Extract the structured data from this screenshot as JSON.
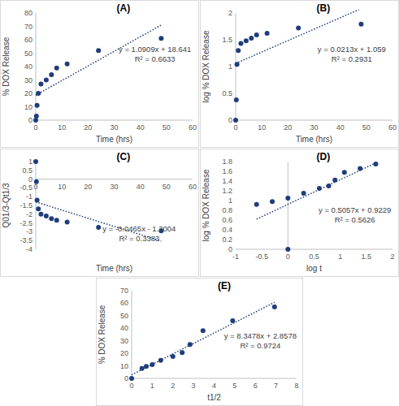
{
  "chart_data": [
    {
      "type": "scatter",
      "title": "(A)",
      "x_label": "Time (hrs)",
      "y_label": "% DOX Release",
      "x": [
        0,
        0.25,
        0.5,
        1,
        2,
        4,
        6,
        8,
        12,
        24,
        48
      ],
      "values": [
        0,
        3,
        11,
        20,
        27,
        30,
        34,
        39,
        42,
        52,
        61
      ],
      "xlim": [
        0,
        60
      ],
      "xticks": [
        0,
        10,
        20,
        30,
        40,
        50,
        60
      ],
      "ylim": [
        0,
        80
      ],
      "yticks": [
        0,
        10,
        20,
        30,
        40,
        50,
        60,
        70,
        80
      ],
      "trendline": {
        "slope": 1.0909,
        "intercept": 18.641
      },
      "annotations": [
        "y = 1.0909x + 18.641",
        "R² = 0.6633"
      ],
      "color": "#1f3d7a",
      "marker": "circle",
      "grid": false
    },
    {
      "type": "scatter",
      "title": "(B)",
      "x_label": "Time (hrs)",
      "y_label": "log % DOX Release",
      "x": [
        0,
        0.25,
        0.5,
        1,
        2,
        4,
        6,
        8,
        12,
        24,
        48
      ],
      "values": [
        0,
        0.38,
        1.04,
        1.3,
        1.43,
        1.48,
        1.53,
        1.59,
        1.62,
        1.72,
        1.79
      ],
      "xlim": [
        0,
        60
      ],
      "xticks": [
        0,
        10,
        20,
        30,
        40,
        50,
        60
      ],
      "ylim": [
        0,
        2
      ],
      "yticks": [
        0,
        0.5,
        1,
        1.5,
        2
      ],
      "trendline": {
        "slope": 0.0213,
        "intercept": 1.059
      },
      "annotations": [
        "y = 0.0213x + 1.059",
        "R² = 0.2931"
      ],
      "color": "#1f3d7a",
      "marker": "circle",
      "grid": false
    },
    {
      "type": "scatter",
      "title": "(C)",
      "x_label": "Time (hrs)",
      "y_label": "Q01/3-Qt1/3",
      "x": [
        0,
        0.25,
        0.5,
        1,
        2,
        4,
        6,
        8,
        12,
        24,
        48
      ],
      "values": [
        1,
        -0.15,
        -1.2,
        -1.7,
        -2.0,
        -2.1,
        -2.25,
        -2.35,
        -2.45,
        -2.75,
        -2.95
      ],
      "xlim": [
        0,
        60
      ],
      "xticks": [
        0,
        10,
        20,
        30,
        40,
        50,
        60
      ],
      "ylim": [
        -4,
        1
      ],
      "yticks": [
        -4,
        -3.5,
        -3,
        -2.5,
        -2,
        -1.5,
        -1,
        -0.5,
        0,
        0.5,
        1
      ],
      "trendline": {
        "slope": -0.0465,
        "intercept": -1.3004
      },
      "annotations": [
        "y = -0.0465x - 1.3004",
        "R² = 0.3383"
      ],
      "color": "#1f3d7a",
      "marker": "circle",
      "grid": false
    },
    {
      "type": "scatter",
      "title": "(D)",
      "x_label": "log t",
      "y_label": "log % DOX Release",
      "x": [
        -0.6,
        -0.3,
        0,
        0,
        0.3,
        0.6,
        0.78,
        0.9,
        1.08,
        1.38,
        1.68
      ],
      "values": [
        0.92,
        0.98,
        0,
        1.05,
        1.15,
        1.25,
        1.3,
        1.42,
        1.58,
        1.66,
        1.75
      ],
      "xlim": [
        -1,
        2
      ],
      "xticks": [
        -1,
        -0.5,
        0,
        0.5,
        1,
        1.5,
        2
      ],
      "ylim": [
        0,
        1.8
      ],
      "yticks": [
        0,
        0.2,
        0.4,
        0.6,
        0.8,
        1,
        1.2,
        1.4,
        1.6,
        1.8
      ],
      "trendline": {
        "slope": 0.5057,
        "intercept": 0.9229
      },
      "annotations": [
        "y = 0.5057x + 0.9229",
        "R² = 0.5626"
      ],
      "color": "#1f3d7a",
      "marker": "circle",
      "grid": false
    },
    {
      "type": "scatter",
      "title": "(E)",
      "x_label": "t1/2",
      "y_label": "% DOX Release",
      "x": [
        0,
        0.5,
        0.71,
        1,
        1.41,
        2,
        2.45,
        2.83,
        3.46,
        4.9,
        6.93
      ],
      "values": [
        0,
        8,
        9.5,
        11,
        14.5,
        17.5,
        20.5,
        27,
        38,
        46,
        57
      ],
      "xlim": [
        0,
        8
      ],
      "xticks": [
        0,
        1,
        2,
        3,
        4,
        5,
        6,
        7,
        8
      ],
      "ylim": [
        0,
        70
      ],
      "yticks": [
        0,
        10,
        20,
        30,
        40,
        50,
        60,
        70
      ],
      "trendline": {
        "slope": 8.3478,
        "intercept": 2.8578
      },
      "annotations": [
        "y = 8.3478x + 2.8578",
        "R² = 0.9724"
      ],
      "color": "#1f3d7a",
      "marker": "circle",
      "grid": false
    }
  ]
}
